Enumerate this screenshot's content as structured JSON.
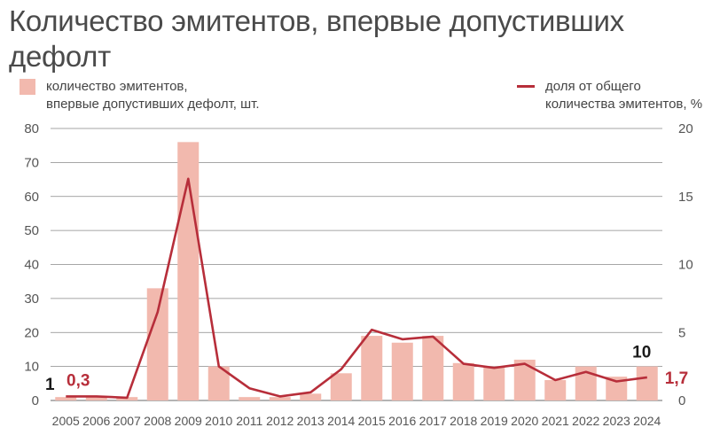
{
  "chart_data": {
    "type": "bar",
    "title": "Количество эмитентов, впервые допустивших дефолт",
    "categories": [
      "2005",
      "2006",
      "2007",
      "2008",
      "2009",
      "2010",
      "2011",
      "2012",
      "2013",
      "2014",
      "2015",
      "2016",
      "2017",
      "2018",
      "2019",
      "2020",
      "2021",
      "2022",
      "2023",
      "2024"
    ],
    "series": [
      {
        "name": "количество эмитентов, впервые допустивших дефолт, шт.",
        "type": "bar",
        "axis": "left",
        "values": [
          1,
          1,
          1,
          33,
          76,
          10,
          1,
          1,
          2,
          8,
          19,
          17,
          19,
          11,
          10,
          12,
          6,
          10,
          7,
          10
        ]
      },
      {
        "name": "доля от общего количества эмитентов, %",
        "type": "line",
        "axis": "right",
        "values": [
          0.3,
          0.3,
          0.2,
          6.5,
          16.3,
          2.5,
          0.9,
          0.3,
          0.6,
          2.3,
          5.2,
          4.5,
          4.7,
          2.7,
          2.4,
          2.7,
          1.5,
          2.1,
          1.4,
          1.7
        ]
      }
    ],
    "left_axis": {
      "min": 0,
      "max": 80,
      "ticks": [
        0,
        10,
        20,
        30,
        40,
        50,
        60,
        70,
        80
      ]
    },
    "right_axis": {
      "min": 0,
      "max": 20,
      "ticks": [
        0,
        5,
        10,
        15,
        20
      ]
    },
    "annotations": [
      {
        "text": "1",
        "target": "bar",
        "index": 0
      },
      {
        "text": "0,3",
        "target": "line",
        "index": 0
      },
      {
        "text": "10",
        "target": "bar",
        "index": 19
      },
      {
        "text": "1,7",
        "target": "line",
        "index": 19
      }
    ],
    "grid": true,
    "legend": "top",
    "colors": {
      "bar": "#f2b9ae",
      "line": "#b72e3a",
      "grid": "#888888",
      "text_dark": "#1a1a1a"
    }
  },
  "legend": {
    "bar_line1": "количество эмитентов,",
    "bar_line2": "впервые допустивших дефолт, шт.",
    "line_line1": "доля от общего",
    "line_line2": "количества эмитентов, %"
  }
}
